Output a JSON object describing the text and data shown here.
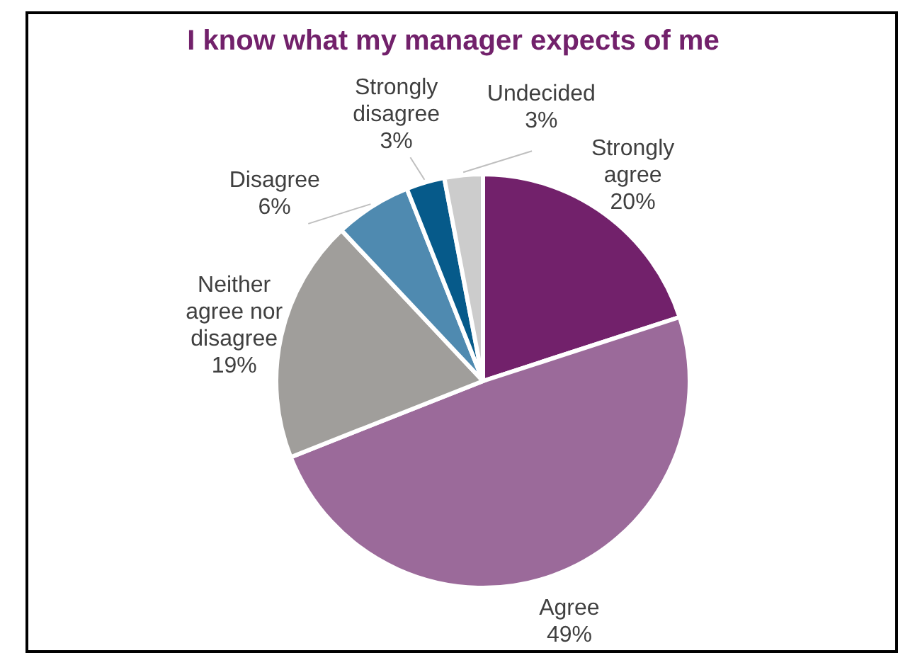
{
  "chart_data": {
    "type": "pie",
    "title": "I know what my manager expects of me",
    "categories": [
      "Strongly agree",
      "Agree",
      "Neither agree nor disagree",
      "Disagree",
      "Strongly disagree",
      "Undecided"
    ],
    "values": [
      20,
      49,
      19,
      6,
      3,
      3
    ],
    "colors": [
      "#72216b",
      "#9b6a9a",
      "#a09e9b",
      "#4f8ab0",
      "#065a8a",
      "#cccccc"
    ],
    "value_labels": [
      "20%",
      "49%",
      "19%",
      "6%",
      "3%",
      "3%"
    ],
    "legend": false
  }
}
